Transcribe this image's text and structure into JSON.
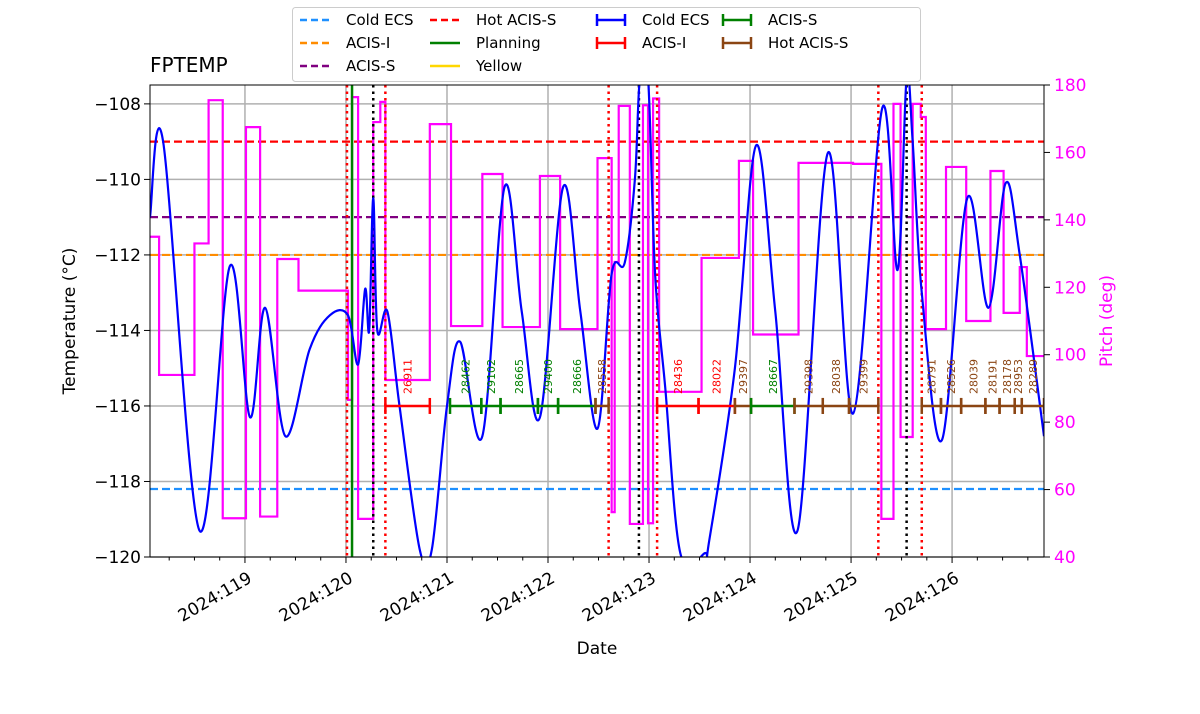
{
  "chart_data": {
    "type": "line",
    "title": "FPTEMP",
    "xlabel": "Date",
    "ylabel": "Temperature ($^\\circ$C)",
    "ylabel_display": "Temperature (°C)",
    "y2label": "Pitch (deg)",
    "xlim": [
      118.06,
      126.91
    ],
    "ylim": [
      -120,
      -107.5
    ],
    "y2lim": [
      40,
      180
    ],
    "grid": true,
    "legend_placement": "top-center",
    "x_ticks": [
      {
        "v": 119,
        "label": "2024:119"
      },
      {
        "v": 120,
        "label": "2024:120"
      },
      {
        "v": 121,
        "label": "2024:121"
      },
      {
        "v": 122,
        "label": "2024:122"
      },
      {
        "v": 123,
        "label": "2024:123"
      },
      {
        "v": 124,
        "label": "2024:124"
      },
      {
        "v": 125,
        "label": "2024:125"
      },
      {
        "v": 126,
        "label": "2024:126"
      }
    ],
    "y_ticks": [
      -120,
      -118,
      -116,
      -114,
      -112,
      -110,
      -108
    ],
    "y2_ticks": [
      40,
      60,
      80,
      100,
      120,
      140,
      160,
      180
    ],
    "colors": {
      "temp": "#0000ff",
      "pitch": "#ff00ff",
      "cold_ecs": "#1e90ff",
      "acis_i": "#ff8c00",
      "acis_s": "#800080",
      "hot_acis_s": "#ff0000",
      "planning": "#008000",
      "yellow": "#ffd700",
      "obs_acis_i": "#ff0000",
      "obs_acis_s": "#008000",
      "obs_hot_acis_s": "#8b4513"
    },
    "limits": [
      {
        "name": "Cold ECS",
        "value": -118.2,
        "color": "#1e90ff"
      },
      {
        "name": "ACIS-I",
        "value": -112,
        "color": "#ff8c00"
      },
      {
        "name": "ACIS-S",
        "value": -111,
        "color": "#800080"
      },
      {
        "name": "Hot ACIS-S",
        "value": -109,
        "color": "#ff0000"
      }
    ],
    "legend": [
      {
        "label": "Cold ECS",
        "style": "dashed",
        "color": "#1e90ff"
      },
      {
        "label": "ACIS-I",
        "style": "dashed",
        "color": "#ff8c00"
      },
      {
        "label": "ACIS-S",
        "style": "dashed",
        "color": "#800080"
      },
      {
        "label": "Hot ACIS-S",
        "style": "dashed",
        "color": "#ff0000"
      },
      {
        "label": "Planning",
        "style": "solid",
        "color": "#008000"
      },
      {
        "label": "Yellow",
        "style": "solid",
        "color": "#ffd700"
      },
      {
        "label": "Cold ECS",
        "style": "errbar",
        "color": "#0000ff"
      },
      {
        "label": "ACIS-I",
        "style": "errbar",
        "color": "#ff0000"
      },
      {
        "label": "ACIS-S",
        "style": "errbar",
        "color": "#008000"
      },
      {
        "label": "Hot ACIS-S",
        "style": "errbar",
        "color": "#8b4513"
      }
    ],
    "temperature": [
      [
        118.06,
        -111
      ],
      [
        118.19,
        -109
      ],
      [
        118.55,
        -119.3
      ],
      [
        118.85,
        -112.3
      ],
      [
        119.05,
        -116.3
      ],
      [
        119.2,
        -113.4
      ],
      [
        119.4,
        -116.8
      ],
      [
        119.64,
        -114.5
      ],
      [
        119.84,
        -113.6
      ],
      [
        120.02,
        -113.6
      ],
      [
        120.12,
        -114.9
      ],
      [
        120.19,
        -112.9
      ],
      [
        120.23,
        -114
      ],
      [
        120.27,
        -110.5
      ],
      [
        120.31,
        -114
      ],
      [
        120.41,
        -113.5
      ],
      [
        120.53,
        -116
      ],
      [
        120.73,
        -119.8
      ],
      [
        120.85,
        -119.8
      ],
      [
        121.0,
        -116
      ],
      [
        121.13,
        -114.3
      ],
      [
        121.35,
        -116.8
      ],
      [
        121.57,
        -110.2
      ],
      [
        121.74,
        -113.5
      ],
      [
        121.92,
        -116.3
      ],
      [
        122.15,
        -110.2
      ],
      [
        122.32,
        -113.5
      ],
      [
        122.49,
        -116.6
      ],
      [
        122.63,
        -112.5
      ],
      [
        122.76,
        -112.2
      ],
      [
        122.86,
        -110
      ],
      [
        122.91,
        -107.3
      ],
      [
        122.99,
        -107.3
      ],
      [
        123.06,
        -112.5
      ],
      [
        123.16,
        -115.5
      ],
      [
        123.31,
        -119.9
      ],
      [
        123.55,
        -119.9
      ],
      [
        123.6,
        -119.5
      ],
      [
        123.85,
        -115
      ],
      [
        124.06,
        -109.1
      ],
      [
        124.25,
        -113.5
      ],
      [
        124.47,
        -119.3
      ],
      [
        124.77,
        -109.3
      ],
      [
        125.02,
        -116.2
      ],
      [
        125.31,
        -108.1
      ],
      [
        125.46,
        -112.4
      ],
      [
        125.55,
        -107.3
      ],
      [
        125.61,
        -109
      ],
      [
        125.7,
        -113
      ],
      [
        125.9,
        -116.9
      ],
      [
        126.15,
        -110.5
      ],
      [
        126.36,
        -113.4
      ],
      [
        126.53,
        -110.1
      ],
      [
        126.67,
        -112
      ],
      [
        126.91,
        -116.8
      ]
    ],
    "pitch_steps": [
      [
        118.06,
        135
      ],
      [
        118.15,
        94
      ],
      [
        118.5,
        133
      ],
      [
        118.64,
        175.5
      ],
      [
        118.78,
        51.5
      ],
      [
        119.01,
        167.5
      ],
      [
        119.15,
        52
      ],
      [
        119.32,
        128.4
      ],
      [
        119.53,
        119
      ],
      [
        120.02,
        86.6
      ],
      [
        120.06,
        176.4
      ],
      [
        120.12,
        51.3
      ],
      [
        120.27,
        169
      ],
      [
        120.34,
        175
      ],
      [
        120.39,
        92.5
      ],
      [
        120.83,
        168.4
      ],
      [
        121.04,
        108.5
      ],
      [
        121.35,
        153.6
      ],
      [
        121.55,
        108.2
      ],
      [
        121.92,
        153
      ],
      [
        122.12,
        107.6
      ],
      [
        122.49,
        158.3
      ],
      [
        122.63,
        53.3
      ],
      [
        122.66,
        127.5
      ],
      [
        122.7,
        173.8
      ],
      [
        122.81,
        49.8
      ],
      [
        122.94,
        174
      ],
      [
        122.99,
        50
      ],
      [
        123.04,
        176
      ],
      [
        123.1,
        89
      ],
      [
        123.52,
        128.7
      ],
      [
        123.89,
        157.5
      ],
      [
        124.03,
        106
      ],
      [
        124.48,
        156.9
      ],
      [
        125.02,
        156.6
      ],
      [
        125.3,
        51.3
      ],
      [
        125.42,
        174.4
      ],
      [
        125.49,
        75.6
      ],
      [
        125.61,
        174.4
      ],
      [
        125.69,
        170.5
      ],
      [
        125.74,
        107.6
      ],
      [
        125.94,
        155.7
      ],
      [
        126.14,
        110
      ],
      [
        126.38,
        154.5
      ],
      [
        126.51,
        112.4
      ],
      [
        126.67,
        126
      ],
      [
        126.74,
        99.6
      ],
      [
        126.91,
        99.6
      ]
    ],
    "red_dotted_lines": [
      120.01,
      120.39,
      122.6,
      123.08,
      125.27,
      125.7
    ],
    "black_dotted_lines": [
      120.27,
      122.9,
      125.55
    ],
    "planning_line": 120.06,
    "obsid_level": -116,
    "obsids": [
      {
        "start": 120.39,
        "end": 120.83,
        "obsid": "26911",
        "mode": "ACIS-I"
      },
      {
        "start": 121.03,
        "end": 121.34,
        "obsid": "28462",
        "mode": "ACIS-S"
      },
      {
        "start": 121.34,
        "end": 121.53,
        "obsid": "29102",
        "mode": "ACIS-S"
      },
      {
        "start": 121.53,
        "end": 121.9,
        "obsid": "28665",
        "mode": "ACIS-S"
      },
      {
        "start": 121.9,
        "end": 122.1,
        "obsid": "29400",
        "mode": "ACIS-S"
      },
      {
        "start": 122.1,
        "end": 122.47,
        "obsid": "28666",
        "mode": "ACIS-S"
      },
      {
        "start": 122.47,
        "end": 122.6,
        "obsid": "28558",
        "mode": "Hot ACIS-S"
      },
      {
        "start": 123.08,
        "end": 123.49,
        "obsid": "28436",
        "mode": "ACIS-I"
      },
      {
        "start": 123.49,
        "end": 123.85,
        "obsid": "28022",
        "mode": "ACIS-I"
      },
      {
        "start": 123.85,
        "end": 124.01,
        "obsid": "29397",
        "mode": "Hot ACIS-S"
      },
      {
        "start": 124.01,
        "end": 124.44,
        "obsid": "28667",
        "mode": "ACIS-S"
      },
      {
        "start": 124.44,
        "end": 124.72,
        "obsid": "29398",
        "mode": "Hot ACIS-S"
      },
      {
        "start": 124.72,
        "end": 124.98,
        "obsid": "28038",
        "mode": "Hot ACIS-S"
      },
      {
        "start": 124.98,
        "end": 125.27,
        "obsid": "29399",
        "mode": "Hot ACIS-S"
      },
      {
        "start": 125.7,
        "end": 125.89,
        "obsid": "28791",
        "mode": "Hot ACIS-S"
      },
      {
        "start": 125.89,
        "end": 126.09,
        "obsid": "28526",
        "mode": "Hot ACIS-S"
      },
      {
        "start": 126.09,
        "end": 126.33,
        "obsid": "28039",
        "mode": "Hot ACIS-S"
      },
      {
        "start": 126.33,
        "end": 126.47,
        "obsid": "28191",
        "mode": "Hot ACIS-S"
      },
      {
        "start": 126.47,
        "end": 126.62,
        "obsid": "28178",
        "mode": "Hot ACIS-S"
      },
      {
        "start": 126.62,
        "end": 126.69,
        "obsid": "28953",
        "mode": "Hot ACIS-S"
      },
      {
        "start": 126.69,
        "end": 126.91,
        "obsid": "28289",
        "mode": "Hot ACIS-S"
      }
    ]
  }
}
